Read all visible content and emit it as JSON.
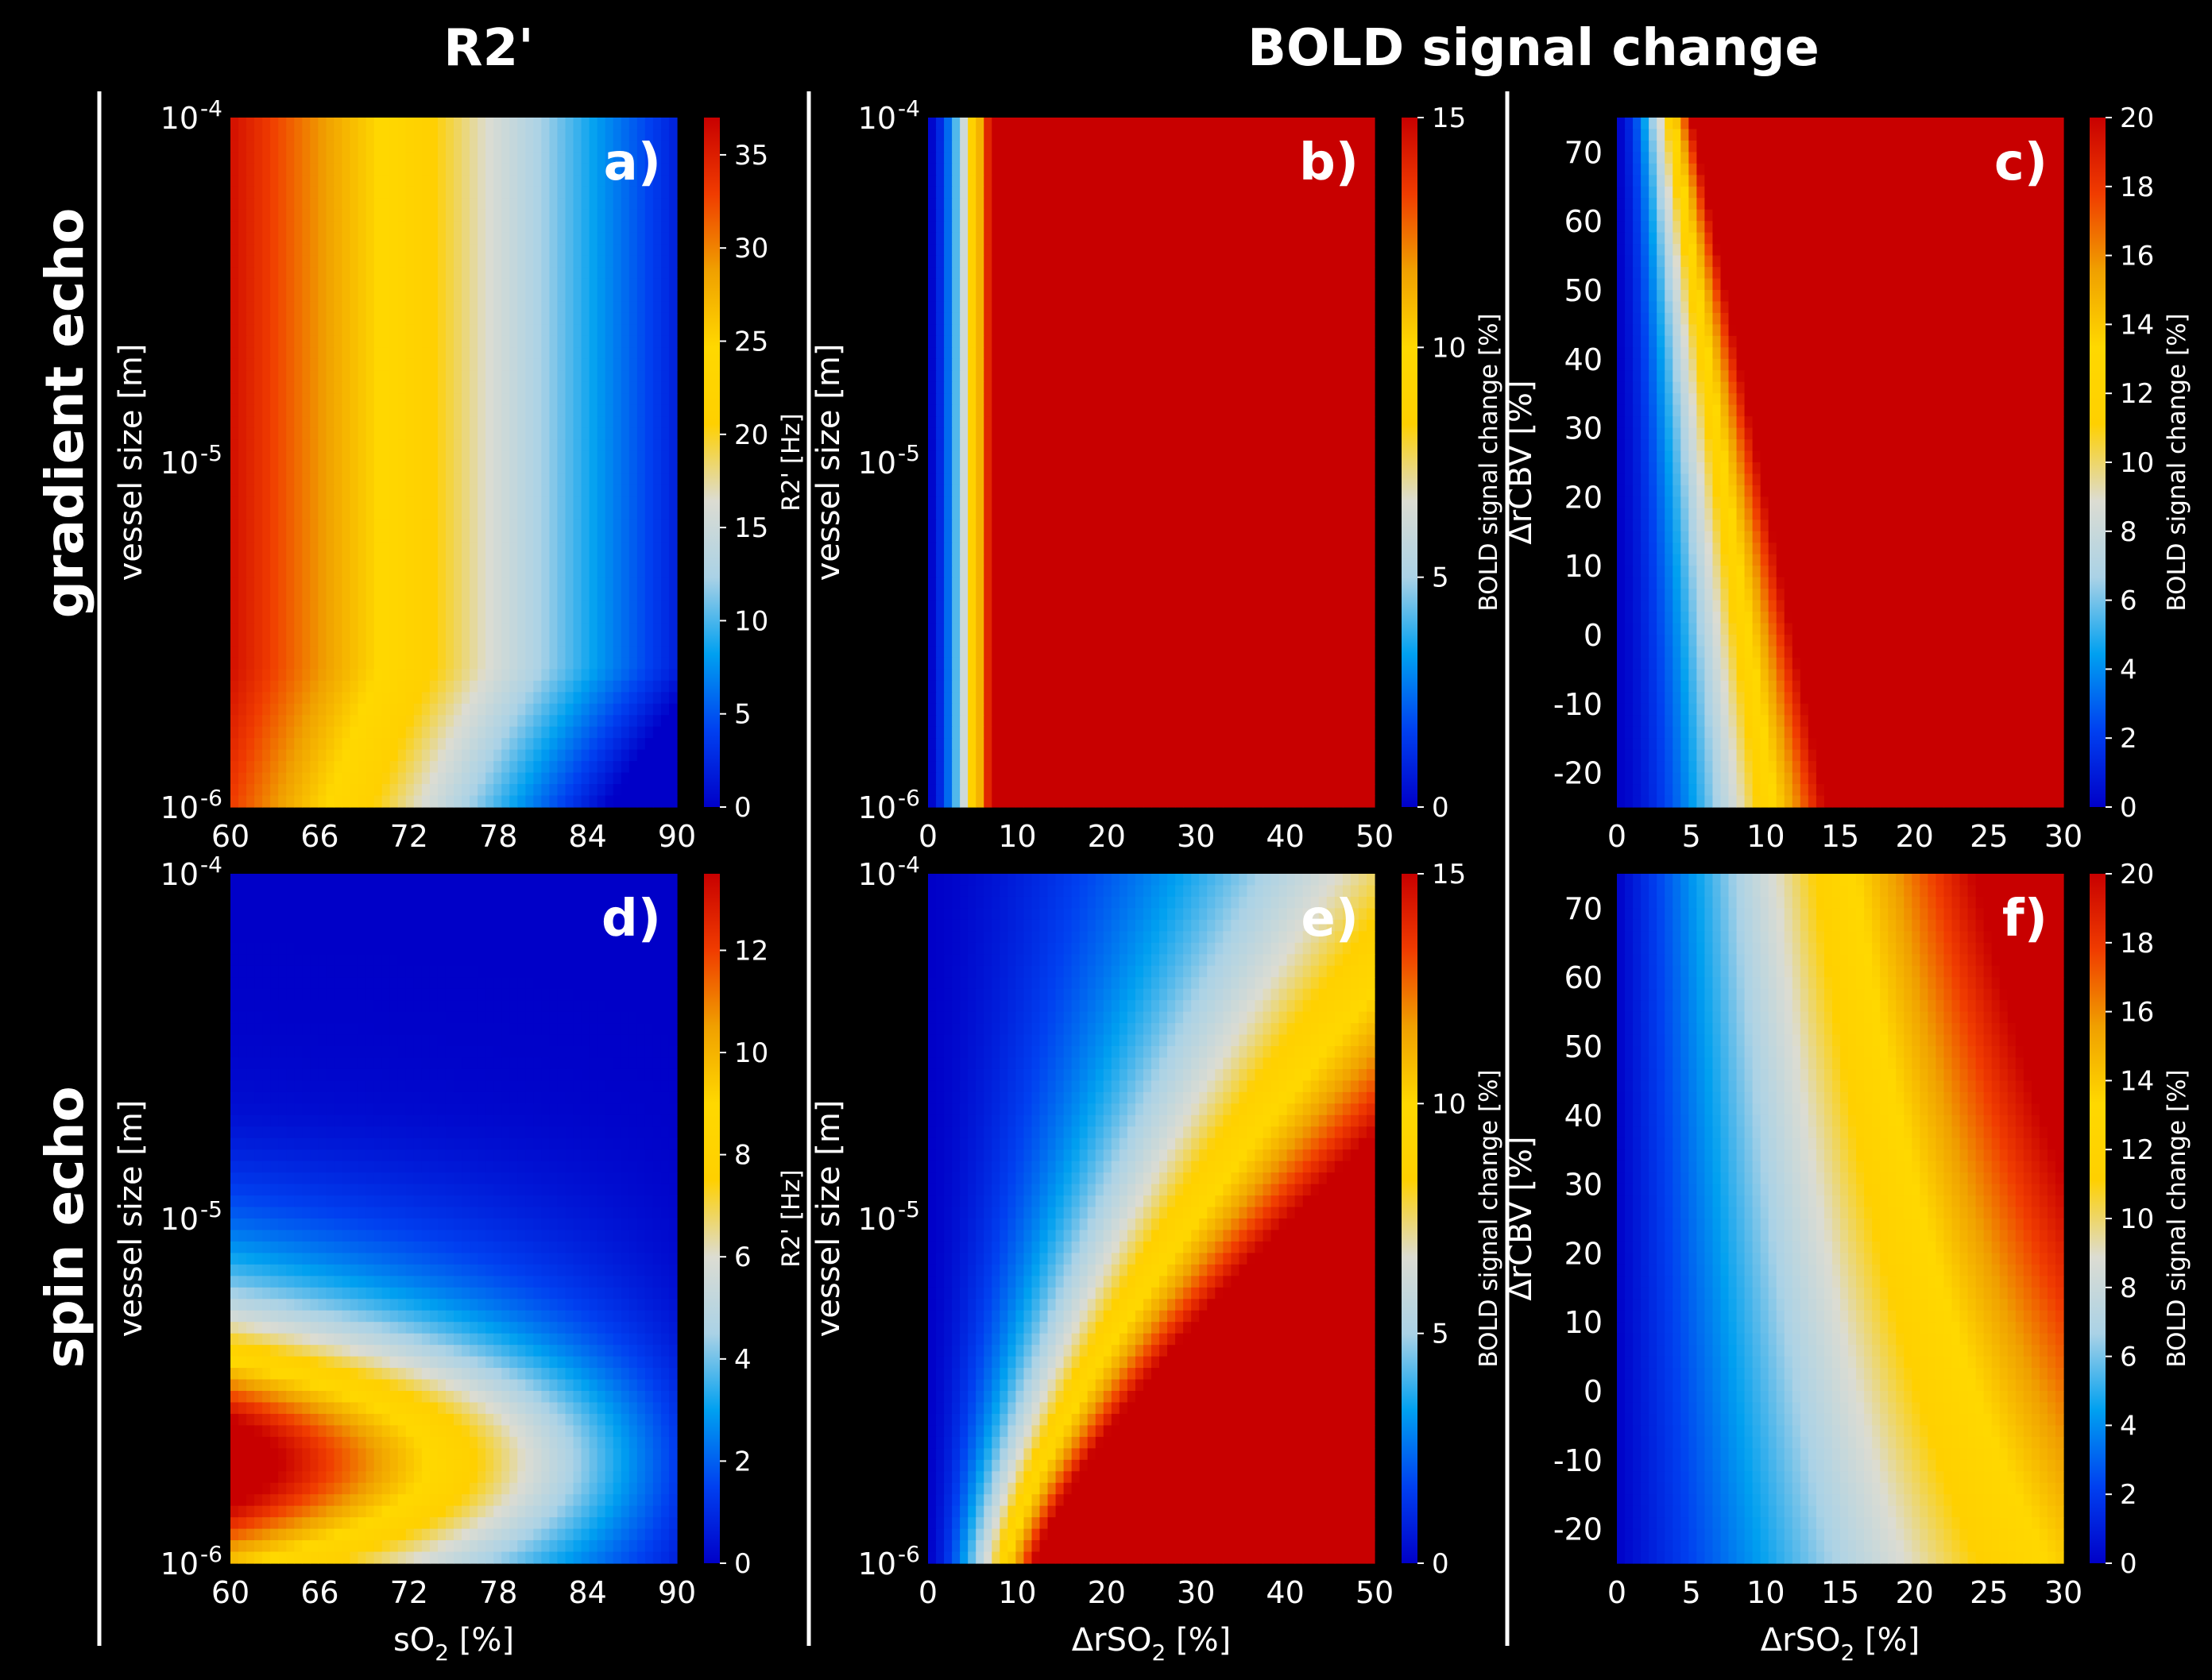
{
  "headers": {
    "col_r2": "R2'",
    "col_bold": "BOLD signal change",
    "row_gradient": "gradient echo",
    "row_spin": "spin echo"
  },
  "colormap": [
    "#0000c8",
    "#0040f0",
    "#00a0f0",
    "#aad2e6",
    "#dcdcd2",
    "#ffd000",
    "#ffd800",
    "#f0a000",
    "#f03c00",
    "#c80000"
  ],
  "chart_data": [
    {
      "type": "heatmap",
      "id": "a",
      "letter": "a)",
      "x": {
        "label_main": "sO",
        "label_sub": "2",
        "label_tail": " [%]",
        "range": [
          60,
          90
        ],
        "ticks": [
          60,
          66,
          72,
          78,
          84,
          90
        ],
        "tick_labels": [
          "60",
          "66",
          "72",
          "78",
          "84",
          "90"
        ],
        "show_label": false
      },
      "y": {
        "label": "vessel size [m]",
        "scale": "log",
        "range": [
          1e-06,
          0.0001
        ],
        "ticks": [
          1e-06,
          1e-05,
          0.0001
        ],
        "tick_base": "10",
        "tick_exps": [
          "-6",
          "-5",
          "-4"
        ]
      },
      "colorbar": {
        "label": "R2'  [Hz]",
        "range": [
          0,
          37
        ],
        "ticks": [
          0,
          5,
          10,
          15,
          20,
          25,
          30,
          35
        ],
        "tick_labels": [
          "0",
          "5",
          "10",
          "15",
          "20",
          "25",
          "30",
          "35"
        ]
      },
      "model": "r2_ge"
    },
    {
      "type": "heatmap",
      "id": "b",
      "letter": "b)",
      "x": {
        "label_main": "ΔrSO",
        "label_sub": "2",
        "label_tail": " [%]",
        "range": [
          0,
          50
        ],
        "ticks": [
          0,
          10,
          20,
          30,
          40,
          50
        ],
        "tick_labels": [
          "0",
          "10",
          "20",
          "30",
          "40",
          "50"
        ],
        "show_label": false
      },
      "y": {
        "label": "vessel size [m]",
        "scale": "log",
        "range": [
          1e-06,
          0.0001
        ],
        "ticks": [
          1e-06,
          1e-05,
          0.0001
        ],
        "tick_base": "10",
        "tick_exps": [
          "-6",
          "-5",
          "-4"
        ]
      },
      "colorbar": {
        "label": "BOLD signal change [%]",
        "range": [
          0,
          15
        ],
        "ticks": [
          0,
          5,
          10,
          15
        ],
        "tick_labels": [
          "0",
          "5",
          "10",
          "15"
        ]
      },
      "model": "bold_ge_vs"
    },
    {
      "type": "heatmap",
      "id": "c",
      "letter": "c)",
      "x": {
        "label_main": "ΔrSO",
        "label_sub": "2",
        "label_tail": " [%]",
        "range": [
          0,
          30
        ],
        "ticks": [
          0,
          5,
          10,
          15,
          20,
          25,
          30
        ],
        "tick_labels": [
          "0",
          "5",
          "10",
          "15",
          "20",
          "25",
          "30"
        ],
        "show_label": false
      },
      "y": {
        "label": "ΔrCBV [%]",
        "scale": "linear",
        "range": [
          -25,
          75
        ],
        "ticks": [
          -20,
          -10,
          0,
          10,
          20,
          30,
          40,
          50,
          60,
          70
        ],
        "tick_labels": [
          "-20",
          "-10",
          "0",
          "10",
          "20",
          "30",
          "40",
          "50",
          "60",
          "70"
        ]
      },
      "colorbar": {
        "label": "BOLD signal change [%]",
        "range": [
          0,
          20
        ],
        "ticks": [
          0,
          2,
          4,
          6,
          8,
          10,
          12,
          14,
          16,
          18,
          20
        ],
        "tick_labels": [
          "0",
          "2",
          "4",
          "6",
          "8",
          "10",
          "12",
          "14",
          "16",
          "18",
          "20"
        ]
      },
      "model": "bold_ge_cbv"
    },
    {
      "type": "heatmap",
      "id": "d",
      "letter": "d)",
      "x": {
        "label_main": "sO",
        "label_sub": "2",
        "label_tail": " [%]",
        "range": [
          60,
          90
        ],
        "ticks": [
          60,
          66,
          72,
          78,
          84,
          90
        ],
        "tick_labels": [
          "60",
          "66",
          "72",
          "78",
          "84",
          "90"
        ],
        "show_label": true
      },
      "y": {
        "label": "vessel size [m]",
        "scale": "log",
        "range": [
          1e-06,
          0.0001
        ],
        "ticks": [
          1e-06,
          1e-05,
          0.0001
        ],
        "tick_base": "10",
        "tick_exps": [
          "-6",
          "-5",
          "-4"
        ]
      },
      "colorbar": {
        "label": "R2'  [Hz]",
        "range": [
          0,
          13.5
        ],
        "ticks": [
          0,
          2,
          4,
          6,
          8,
          10,
          12
        ],
        "tick_labels": [
          "0",
          "2",
          "4",
          "6",
          "8",
          "10",
          "12"
        ]
      },
      "model": "r2_se"
    },
    {
      "type": "heatmap",
      "id": "e",
      "letter": "e)",
      "x": {
        "label_main": "ΔrSO",
        "label_sub": "2",
        "label_tail": " [%]",
        "range": [
          0,
          50
        ],
        "ticks": [
          0,
          10,
          20,
          30,
          40,
          50
        ],
        "tick_labels": [
          "0",
          "10",
          "20",
          "30",
          "40",
          "50"
        ],
        "show_label": true
      },
      "y": {
        "label": "vessel size [m]",
        "scale": "log",
        "range": [
          1e-06,
          0.0001
        ],
        "ticks": [
          1e-06,
          1e-05,
          0.0001
        ],
        "tick_base": "10",
        "tick_exps": [
          "-6",
          "-5",
          "-4"
        ]
      },
      "colorbar": {
        "label": "BOLD signal change [%]",
        "range": [
          0,
          15
        ],
        "ticks": [
          0,
          5,
          10,
          15
        ],
        "tick_labels": [
          "0",
          "5",
          "10",
          "15"
        ]
      },
      "model": "bold_se_vs"
    },
    {
      "type": "heatmap",
      "id": "f",
      "letter": "f)",
      "x": {
        "label_main": "ΔrSO",
        "label_sub": "2",
        "label_tail": " [%]",
        "range": [
          0,
          30
        ],
        "ticks": [
          0,
          5,
          10,
          15,
          20,
          25,
          30
        ],
        "tick_labels": [
          "0",
          "5",
          "10",
          "15",
          "20",
          "25",
          "30"
        ],
        "show_label": true
      },
      "y": {
        "label": "ΔrCBV [%]",
        "scale": "linear",
        "range": [
          -25,
          75
        ],
        "ticks": [
          -20,
          -10,
          0,
          10,
          20,
          30,
          40,
          50,
          60,
          70
        ],
        "tick_labels": [
          "-20",
          "-10",
          "0",
          "10",
          "20",
          "30",
          "40",
          "50",
          "60",
          "70"
        ]
      },
      "colorbar": {
        "label": "BOLD signal change [%]",
        "range": [
          0,
          20
        ],
        "ticks": [
          0,
          2,
          4,
          6,
          8,
          10,
          12,
          14,
          16,
          18,
          20
        ],
        "tick_labels": [
          "0",
          "2",
          "4",
          "6",
          "8",
          "10",
          "12",
          "14",
          "16",
          "18",
          "20"
        ]
      },
      "model": "bold_se_cbv"
    }
  ]
}
